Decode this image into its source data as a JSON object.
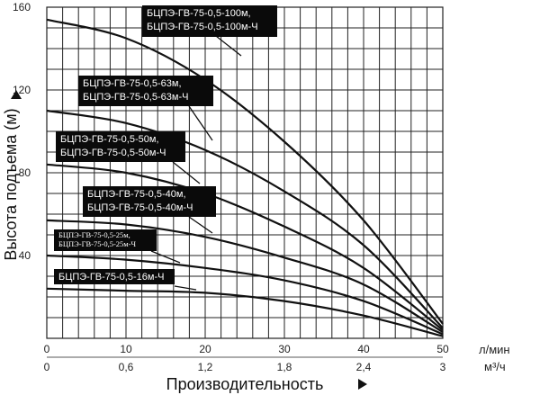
{
  "chart_data": {
    "type": "line",
    "ylabel": "Высота подъема (м)",
    "xlabel": "Производительность",
    "x_unit_primary": "л/мин",
    "x_unit_secondary": "м³/ч",
    "xlim": [
      0,
      50
    ],
    "ylim": [
      0,
      160
    ],
    "x_ticks_primary": [
      "0",
      "10",
      "20",
      "30",
      "40",
      "50"
    ],
    "x_ticks_secondary": [
      "0",
      "0,6",
      "1,2",
      "1,8",
      "2,4",
      "3"
    ],
    "y_ticks": [
      "40",
      "80",
      "120",
      "160"
    ],
    "grid": true,
    "series": [
      {
        "name": "БЦПЭ-ГВ-75-0,5-100м,\nБЦПЭ-ГВ-75-0,5-100м-Ч",
        "x": [
          0,
          10,
          20,
          30,
          40,
          50
        ],
        "y": [
          154,
          145,
          125,
          95,
          57,
          7
        ]
      },
      {
        "name": "БЦПЭ-ГВ-75-0,5-63м,\nБЦПЭ-ГВ-75-0,5-63м-Ч",
        "x": [
          0,
          10,
          20,
          30,
          40,
          50
        ],
        "y": [
          110,
          104,
          91,
          71,
          45,
          5
        ]
      },
      {
        "name": "БЦПЭ-ГВ-75-0,5-50м,\nБЦПЭ-ГВ-75-0,5-50м-Ч",
        "x": [
          0,
          10,
          20,
          30,
          40,
          50
        ],
        "y": [
          84,
          80,
          70,
          54,
          34,
          4
        ]
      },
      {
        "name": "БЦПЭ-ГВ-75-0,5-40м,\nБЦПЭ-ГВ-75-0,5-40м-Ч",
        "x": [
          0,
          10,
          20,
          30,
          40,
          50
        ],
        "y": [
          57,
          55,
          49,
          39,
          26,
          3
        ]
      },
      {
        "name": "БЦПЭ-ГВ-75-0,5-25м,\nБЦПЭ-ГВ-75-0,5-25м-Ч",
        "x": [
          0,
          10,
          20,
          30,
          40,
          50
        ],
        "y": [
          40,
          38,
          34,
          28,
          18,
          2
        ]
      },
      {
        "name": "БЦПЭ-ГВ-75-0,5-16м-Ч",
        "x": [
          0,
          10,
          20,
          30,
          40,
          50
        ],
        "y": [
          24,
          23,
          22,
          18,
          11,
          1
        ]
      }
    ]
  }
}
